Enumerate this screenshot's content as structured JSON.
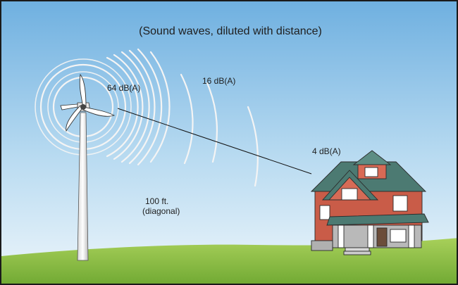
{
  "title": "(Sound waves, diluted with distance)",
  "labels": {
    "near": "64 dB(A)",
    "mid": "16 dB(A)",
    "far": "4 dB(A)",
    "distance_line1": "100 ft.",
    "distance_line2": "(diagonal)"
  },
  "colors": {
    "sky_top": "#6fb0e0",
    "sky_bottom": "#e6f2fa",
    "grass": "#8fc048",
    "house_brick": "#c95c48",
    "roof": "#4c7a72"
  }
}
